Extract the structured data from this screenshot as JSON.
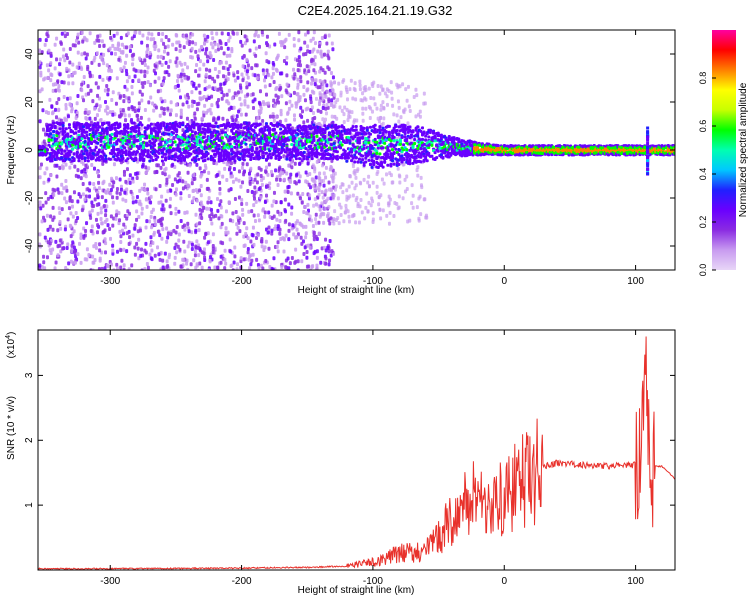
{
  "title": "C2E4.2025.164.21.19.G32",
  "chart_data": [
    {
      "type": "heatmap",
      "xlabel": "Height of straight line (km)",
      "ylabel": "Frequency (Hz)",
      "xlim": [
        -355,
        130
      ],
      "ylim": [
        -50,
        50
      ],
      "xticks": [
        -300,
        -200,
        -100,
        0,
        100
      ],
      "yticks": [
        -40,
        -20,
        0,
        20,
        40
      ],
      "colorbar": {
        "label": "Normalized spectral amplitude",
        "range": [
          0,
          1
        ],
        "ticks": [
          0.0,
          0.2,
          0.4,
          0.6,
          0.8
        ],
        "tick_labels": [
          "0.0",
          "0.2",
          "0.4",
          "0.6",
          "0.8"
        ],
        "colormap": [
          "#e8d6f7",
          "#c89bf0",
          "#8a2be2",
          "#6a00ff",
          "#2020ff",
          "#00c8ff",
          "#00ffb0",
          "#00ff00",
          "#c8ff00",
          "#ffff00",
          "#ff8000",
          "#ff0000",
          "#ff00a0"
        ]
      },
      "description_band": [
        {
          "x": -350,
          "center": 4,
          "halfwidth": 8
        },
        {
          "x": -200,
          "center": 4,
          "halfwidth": 8
        },
        {
          "x": -130,
          "center": 4,
          "halfwidth": 7
        },
        {
          "x": -100,
          "center": 2,
          "halfwidth": 9
        },
        {
          "x": -70,
          "center": 3,
          "halfwidth": 8
        },
        {
          "x": -40,
          "center": 2,
          "halfwidth": 4
        },
        {
          "x": -20,
          "center": 1,
          "halfwidth": 2.5
        },
        {
          "x": 0,
          "center": 0.5,
          "halfwidth": 2
        },
        {
          "x": 100,
          "center": 0.5,
          "halfwidth": 2
        },
        {
          "x": 130,
          "center": 0.5,
          "halfwidth": 2
        }
      ]
    },
    {
      "type": "line",
      "xlabel": "Height of straight line (km)",
      "ylabel": "SNR (10 * v/v)",
      "yscale_label": "(x10",
      "yscale_exp": "4",
      "xlim": [
        -355,
        130
      ],
      "ylim": [
        0,
        3.7
      ],
      "xticks": [
        -300,
        -200,
        -100,
        0,
        100
      ],
      "yticks": [
        1,
        2,
        3
      ],
      "color": "#e8312b",
      "series": [
        {
          "x": [
            -355,
            -300,
            -200,
            -150,
            -120,
            -100,
            -80,
            -60,
            -50,
            -40,
            -30,
            -20,
            -10,
            0,
            10,
            20,
            30,
            40,
            60,
            80,
            100,
            103,
            106,
            108,
            110,
            112,
            120,
            128,
            130
          ],
          "y": [
            0.02,
            0.02,
            0.03,
            0.04,
            0.06,
            0.12,
            0.25,
            0.3,
            0.5,
            0.8,
            1.0,
            1.2,
            1.0,
            1.1,
            1.3,
            1.45,
            1.6,
            1.65,
            1.62,
            1.6,
            1.62,
            1.5,
            2.3,
            3.6,
            1.8,
            1.6,
            1.6,
            1.45,
            1.4
          ]
        }
      ]
    }
  ]
}
